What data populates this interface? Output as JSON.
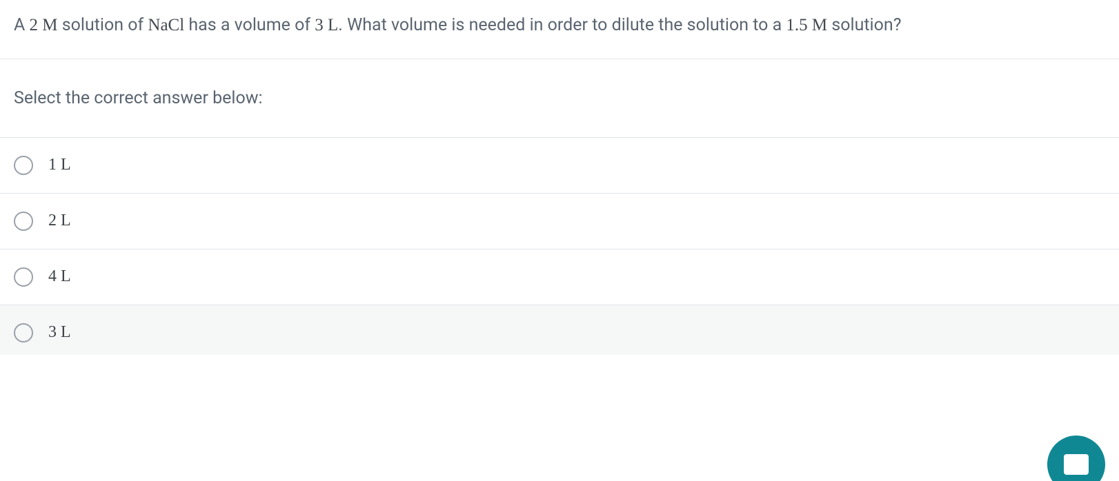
{
  "question": {
    "part1_prefix": "A ",
    "part1_value": "2 M",
    "part1_mid": " solution of ",
    "part1_compound": "NaCl",
    "part1_mid2": " has a volume of ",
    "part1_volume": "3 L",
    "part1_suffix": ".   What volume is needed in order to dilute the solution to a ",
    "part2_value": "1.5 M",
    "part2_suffix": " solution?"
  },
  "prompt": "Select the correct answer below:",
  "options": [
    {
      "label": "1 L"
    },
    {
      "label": "2 L"
    },
    {
      "label": "4 L"
    },
    {
      "label": "3 L"
    }
  ],
  "colors": {
    "text": "#5a6470",
    "serif_text": "#44494f",
    "border": "#e1e4e8",
    "radio_border": "#9aa1a9",
    "chat_bg": "#0f8894",
    "last_row_bg": "#f6f7f7"
  }
}
